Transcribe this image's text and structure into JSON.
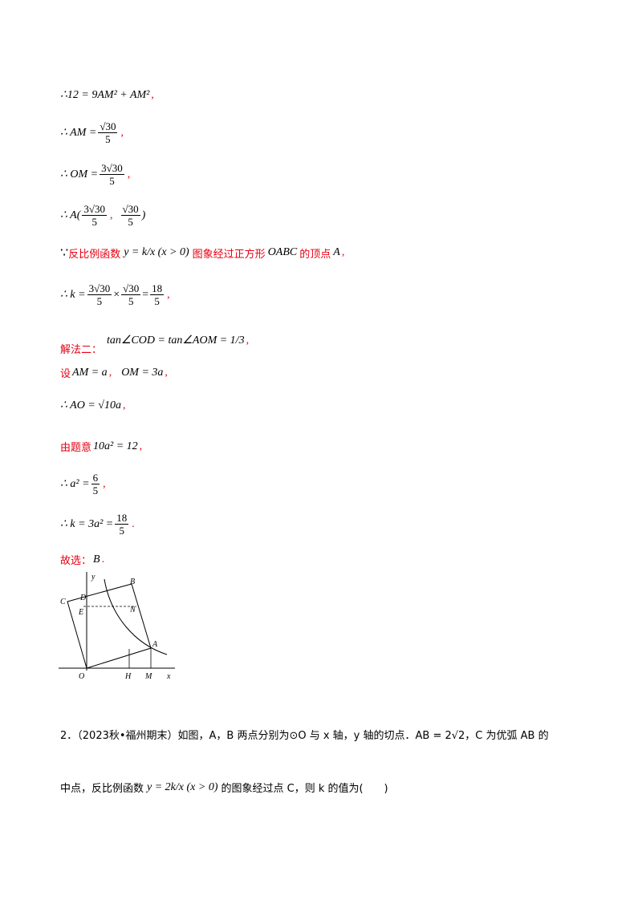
{
  "lines": {
    "l1": "∴12 = 9AM² + AM²",
    "l2_prefix": "∴ AM =",
    "l3_prefix": "∴ OM =",
    "l4_prefix": "∴ A(",
    "l5_because": "∵",
    "l5_text1": "反比例函数",
    "l5_func": "y = k/x (x > 0)",
    "l5_text2": "图象经过正方形",
    "l5_name": "OABC",
    "l5_text3": "的顶点",
    "l5_point": "A",
    "l6_prefix": "∴ k =",
    "l6_result": "18/5",
    "l7_label": "解法二：",
    "l7_expr": "tan∠COD = tan∠AOM = 1/3",
    "l8_text": "设",
    "l8_expr1": "AM = a",
    "l8_expr2": "OM = 3a",
    "l9_expr": "∴ AO = √10a",
    "l10_text": "由题意",
    "l10_expr": "10a² = 12",
    "l11_prefix": "∴ a² =",
    "l12_prefix": "∴ k = 3a² =",
    "l13_text": "故选：",
    "l13_answer": "B"
  },
  "numbers": {
    "sqrt30": "√30",
    "three_sqrt30": "3√30",
    "five": "5",
    "six": "6",
    "eighteen": "18",
    "one": "1",
    "three": "3"
  },
  "figure": {
    "labels": [
      "y",
      "B",
      "C",
      "D",
      "E",
      "N",
      "A",
      "O",
      "H",
      "M",
      "x"
    ]
  },
  "question2": {
    "line1": "2．（2023秋•福州期末）如图，A，B 两点分别为⊙O 与 x 轴，y 轴的切点．AB = 2√2，C 为优弧 AB 的",
    "line2a": "中点，反比例函数",
    "line2_func": "y = 2k/x (x > 0)",
    "line2b": "的图象经过点 C，则 k 的值为(　　)"
  }
}
